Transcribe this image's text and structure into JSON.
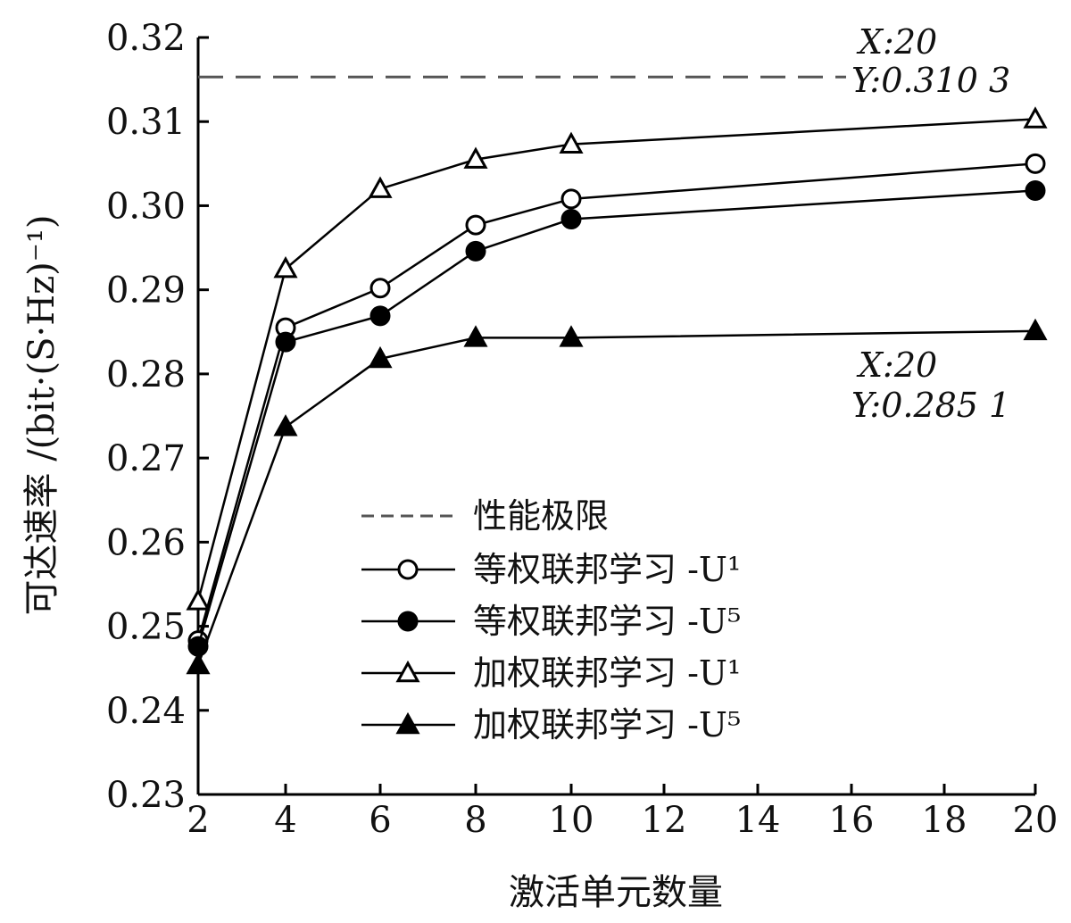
{
  "chart_data": {
    "type": "line",
    "xlabel": "激活单元数量",
    "ylabel": "可达速率 /(bit·(S·Hz)⁻¹)",
    "x_ticks": [
      "2",
      "4",
      "6",
      "8",
      "10",
      "12",
      "14",
      "16",
      "18",
      "20"
    ],
    "y_ticks": [
      "0.23",
      "0.24",
      "0.25",
      "0.26",
      "0.27",
      "0.28",
      "0.29",
      "0.30",
      "0.31",
      "0.32"
    ],
    "ylim": [
      0.23,
      0.32
    ],
    "grid": false,
    "legend_position": "center-left",
    "performance_limit": {
      "name": "性能极限",
      "value": 0.3153,
      "style": "dashed"
    },
    "series": [
      {
        "name": "等权联邦学习 -U¹",
        "marker": "circle-open",
        "x": [
          2,
          4,
          6,
          8,
          10,
          20
        ],
        "values": [
          0.2483,
          0.2855,
          0.2902,
          0.2977,
          0.3008,
          0.305
        ]
      },
      {
        "name": "等权联邦学习 -U⁵",
        "marker": "circle-filled",
        "x": [
          2,
          4,
          6,
          8,
          10,
          20
        ],
        "values": [
          0.2476,
          0.2838,
          0.2869,
          0.2946,
          0.2984,
          0.3018
        ]
      },
      {
        "name": "加权联邦学习 -U¹",
        "marker": "triangle-open",
        "x": [
          2,
          4,
          6,
          8,
          10,
          20
        ],
        "values": [
          0.253,
          0.2925,
          0.302,
          0.3055,
          0.3073,
          0.3103
        ]
      },
      {
        "name": "加权联邦学习 -U⁵",
        "marker": "triangle-filled",
        "x": [
          2,
          4,
          6,
          8,
          10,
          20
        ],
        "values": [
          0.2454,
          0.2737,
          0.2818,
          0.2843,
          0.2843,
          0.2851
        ]
      }
    ],
    "annotations": [
      {
        "x_text": "X:20",
        "y_text": "Y:0.310 3"
      },
      {
        "x_text": "X:20",
        "y_text": "Y:0.285 1"
      }
    ]
  }
}
